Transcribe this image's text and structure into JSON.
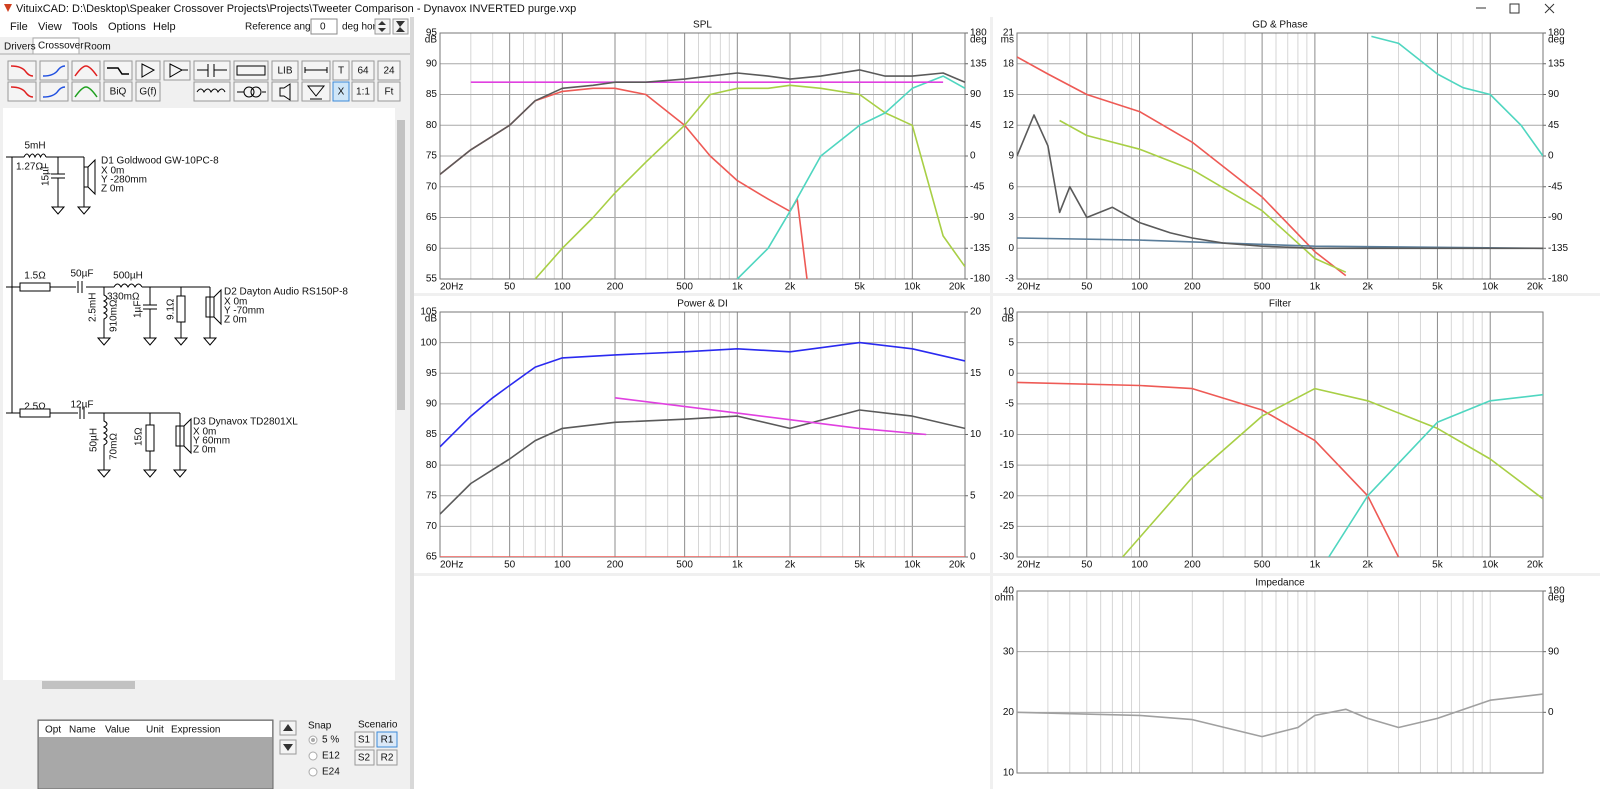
{
  "window": {
    "title": "VituixCAD: D:\\Desktop\\Speaker Crossover Projects\\Projects\\Tweeter Comparison - Dynavox INVERTED purge.vxp"
  },
  "menu": [
    "File",
    "View",
    "Tools",
    "Options",
    "Help"
  ],
  "reference": {
    "label": "Reference angle",
    "value": "0",
    "unit": "deg hor"
  },
  "tabs": [
    "Drivers",
    "Crossover",
    "Room"
  ],
  "toolbar_buttons": [
    "LIB",
    "T",
    "64",
    "24",
    "BiQ",
    "G(f)",
    "X",
    "1:1",
    "Ft"
  ],
  "schematic": [
    {
      "parts": [
        "5mH",
        "1.27Ω",
        "15µF"
      ],
      "driver": "D1 Goldwood GW-10PC-8",
      "position": [
        "X 0m",
        "Y -280mm",
        "Z 0m"
      ]
    },
    {
      "parts": [
        "1.5Ω",
        "50µF",
        "500µH",
        "2.5mH",
        "330mΩ",
        "910mΩ",
        "1µF",
        "9.1Ω"
      ],
      "driver": "D2 Dayton Audio RS150P-8",
      "position": [
        "X 0m",
        "Y -70mm",
        "Z 0m"
      ]
    },
    {
      "parts": [
        "2.5Ω",
        "12µF",
        "50µH",
        "70mΩ",
        "15Ω"
      ],
      "driver": "D3 Dynavox TD2801XL",
      "position": [
        "X 0m",
        "Y 60mm",
        "Z 0m"
      ]
    }
  ],
  "parameters": {
    "headers": [
      "Opt",
      "Name",
      "Value",
      "Unit",
      "Expression"
    ],
    "snap": {
      "title": "Snap",
      "options": [
        "5 %",
        "E12",
        "E24"
      ]
    },
    "scenario": {
      "title": "Scenario",
      "buttons": [
        "S1",
        "R1",
        "S2",
        "R2"
      ]
    }
  },
  "chart_data": [
    {
      "type": "line",
      "title": "SPL",
      "y_unit": "dB",
      "y2_unit": "deg",
      "log_x": true,
      "grid": true,
      "xlim": [
        20,
        20000
      ],
      "xticks": [
        {
          "value": 20,
          "label": "20Hz"
        },
        50,
        100,
        200,
        500,
        {
          "value": 1000,
          "label": "1k"
        },
        {
          "value": 2000,
          "label": "2k"
        },
        {
          "value": 5000,
          "label": "5k"
        },
        {
          "value": 10000,
          "label": "10k"
        },
        {
          "value": 20000,
          "label": "20k"
        }
      ],
      "xgrid": [
        30,
        40,
        60,
        70,
        80,
        90,
        300,
        400,
        600,
        700,
        800,
        900,
        3000,
        4000,
        6000,
        7000,
        8000,
        9000
      ],
      "ylim": [
        55,
        95
      ],
      "yticks": [
        55,
        60,
        65,
        70,
        75,
        80,
        85,
        90,
        95
      ],
      "y2lim": [
        -180,
        180
      ],
      "y2ticks": [
        -180,
        -135,
        -90,
        -45,
        0,
        45,
        90,
        135,
        180
      ],
      "series": [
        {
          "color": "#ee5a55",
          "x": [
            20,
            30,
            50,
            70,
            100,
            150,
            200,
            300,
            500,
            700,
            1000,
            1500,
            2000,
            2200,
            2500
          ],
          "values": [
            72,
            76,
            80,
            84,
            85.5,
            86,
            86,
            85,
            80,
            75,
            71,
            68,
            66,
            68,
            55
          ]
        },
        {
          "color": "#a8cf45",
          "x": [
            70,
            100,
            150,
            200,
            300,
            500,
            700,
            1000,
            1500,
            2000,
            3000,
            5000,
            7000,
            10000,
            15000,
            20000
          ],
          "values": [
            55,
            60,
            65,
            69,
            74,
            80,
            85,
            86,
            86,
            86.5,
            86,
            85,
            82,
            80,
            62,
            57
          ]
        },
        {
          "color": "#4fd6c0",
          "x": [
            1000,
            1500,
            2000,
            3000,
            5000,
            7000,
            10000,
            15000,
            20000
          ],
          "values": [
            55,
            60,
            66,
            75,
            80,
            82,
            86,
            88,
            86
          ]
        },
        {
          "color": "#e040e0",
          "x": [
            30,
            15000
          ],
          "values": [
            87,
            87
          ]
        },
        {
          "color": "#5a5a5a",
          "x": [
            20,
            30,
            50,
            70,
            100,
            150,
            200,
            300,
            500,
            700,
            1000,
            1500,
            2000,
            3000,
            5000,
            7000,
            10000,
            15000,
            20000
          ],
          "values": [
            72,
            76,
            80,
            84,
            86,
            86.5,
            87,
            87,
            87.5,
            88,
            88.5,
            88,
            87.5,
            88,
            89,
            88,
            88,
            88.5,
            87
          ]
        }
      ]
    },
    {
      "type": "line",
      "title": "GD & Phase",
      "y_unit": "ms",
      "y2_unit": "deg",
      "log_x": true,
      "grid": true,
      "xlim": [
        20,
        20000
      ],
      "xticks": [
        {
          "value": 20,
          "label": "20Hz"
        },
        50,
        100,
        200,
        500,
        {
          "value": 1000,
          "label": "1k"
        },
        {
          "value": 2000,
          "label": "2k"
        },
        {
          "value": 5000,
          "label": "5k"
        },
        {
          "value": 10000,
          "label": "10k"
        },
        {
          "value": 20000,
          "label": "20k"
        }
      ],
      "xgrid": [
        30,
        40,
        60,
        70,
        80,
        90,
        300,
        400,
        600,
        700,
        800,
        900,
        3000,
        4000,
        6000,
        7000,
        8000,
        9000
      ],
      "ylim": [
        -3,
        21
      ],
      "yticks": [
        -3,
        0,
        3,
        6,
        9,
        12,
        15,
        18,
        21
      ],
      "y2lim": [
        -180,
        180
      ],
      "y2ticks": [
        -180,
        -135,
        -90,
        -45,
        0,
        45,
        90,
        135,
        180
      ],
      "series": [
        {
          "color": "#ee5a55",
          "axis": "y2",
          "x": [
            20,
            30,
            50,
            100,
            200,
            500,
            1000,
            1500
          ],
          "values": [
            145,
            120,
            90,
            65,
            20,
            -60,
            -140,
            -175
          ]
        },
        {
          "color": "#a8cf45",
          "axis": "y2",
          "x": [
            35,
            50,
            100,
            200,
            500,
            1000,
            1500
          ],
          "values": [
            52,
            30,
            10,
            -20,
            -80,
            -150,
            -170
          ]
        },
        {
          "color": "#4fd6c0",
          "axis": "y2",
          "x": [
            2100,
            3000,
            5000,
            7000,
            10000,
            15000,
            20000
          ],
          "values": [
            175,
            165,
            120,
            100,
            90,
            45,
            0
          ]
        },
        {
          "color": "#5a7d9a",
          "x": [
            20,
            100,
            1000,
            20000
          ],
          "values": [
            1,
            0.8,
            0.2,
            0
          ]
        },
        {
          "color": "#5a5a5a",
          "x": [
            20,
            25,
            30,
            35,
            40,
            50,
            70,
            100,
            150,
            200,
            300,
            500,
            1000,
            2000,
            5000,
            20000
          ],
          "values": [
            9,
            13,
            10,
            3.5,
            6,
            3,
            4,
            2.5,
            1.5,
            1,
            0.5,
            0.2,
            0,
            0,
            0,
            0
          ]
        }
      ]
    },
    {
      "type": "line",
      "title": "Power & DI",
      "y_unit": "dB",
      "log_x": true,
      "grid": true,
      "xlim": [
        20,
        20000
      ],
      "xticks": [
        {
          "value": 20,
          "label": "20Hz"
        },
        50,
        100,
        200,
        500,
        {
          "value": 1000,
          "label": "1k"
        },
        {
          "value": 2000,
          "label": "2k"
        },
        {
          "value": 5000,
          "label": "5k"
        },
        {
          "value": 10000,
          "label": "10k"
        },
        {
          "value": 20000,
          "label": "20k"
        }
      ],
      "xgrid": [
        30,
        40,
        60,
        70,
        80,
        90,
        300,
        400,
        600,
        700,
        800,
        900,
        3000,
        4000,
        6000,
        7000,
        8000,
        9000
      ],
      "ylim": [
        65,
        105
      ],
      "yticks": [
        65,
        70,
        75,
        80,
        85,
        90,
        95,
        100,
        105
      ],
      "y2lim": [
        0,
        20
      ],
      "y2ticks": [
        0,
        5,
        10,
        15,
        20
      ],
      "series": [
        {
          "color": "#2a2af0",
          "x": [
            20,
            30,
            40,
            50,
            70,
            100,
            200,
            500,
            1000,
            2000,
            5000,
            10000,
            20000
          ],
          "values": [
            83,
            88,
            91,
            93,
            96,
            97.5,
            98,
            98.5,
            99,
            98.5,
            100,
            99,
            97
          ]
        },
        {
          "color": "#5a5a5a",
          "x": [
            20,
            30,
            50,
            70,
            100,
            200,
            500,
            1000,
            2000,
            5000,
            10000,
            20000
          ],
          "values": [
            72,
            77,
            81,
            84,
            86,
            87,
            87.5,
            88,
            86,
            89,
            88,
            86
          ]
        },
        {
          "color": "#e040e0",
          "x": [
            200,
            1000,
            5000,
            12000
          ],
          "values": [
            91,
            88.5,
            86,
            85
          ]
        },
        {
          "color": "#ee5a55",
          "axis": "y2",
          "x": [
            20,
            20000
          ],
          "values": [
            0,
            0
          ]
        }
      ]
    },
    {
      "type": "line",
      "title": "Filter",
      "y_unit": "dB",
      "log_x": true,
      "grid": true,
      "xlim": [
        20,
        20000
      ],
      "xticks": [
        {
          "value": 20,
          "label": "20Hz"
        },
        50,
        100,
        200,
        500,
        {
          "value": 1000,
          "label": "1k"
        },
        {
          "value": 2000,
          "label": "2k"
        },
        {
          "value": 5000,
          "label": "5k"
        },
        {
          "value": 10000,
          "label": "10k"
        },
        {
          "value": 20000,
          "label": "20k"
        }
      ],
      "xgrid": [
        30,
        40,
        60,
        70,
        80,
        90,
        300,
        400,
        600,
        700,
        800,
        900,
        3000,
        4000,
        6000,
        7000,
        8000,
        9000
      ],
      "ylim": [
        -30,
        10
      ],
      "yticks": [
        -30,
        -25,
        -20,
        -15,
        -10,
        -5,
        0,
        5,
        10
      ],
      "series": [
        {
          "color": "#ee5a55",
          "x": [
            20,
            100,
            200,
            500,
            1000,
            2000,
            3000
          ],
          "values": [
            -1.5,
            -2,
            -2.5,
            -6,
            -11,
            -20,
            -30
          ]
        },
        {
          "color": "#a8cf45",
          "x": [
            80,
            200,
            500,
            1000,
            2000,
            5000,
            10000,
            20000
          ],
          "values": [
            -30,
            -17,
            -7,
            -2.5,
            -4.5,
            -9,
            -14,
            -20.5
          ]
        },
        {
          "color": "#4fd6c0",
          "x": [
            1200,
            2000,
            5000,
            10000,
            20000
          ],
          "values": [
            -30,
            -20,
            -8,
            -4.5,
            -3.5
          ]
        }
      ]
    },
    {
      "type": "line",
      "title": "Impedance",
      "y_unit": "ohm",
      "y2_unit": "deg",
      "log_x": true,
      "grid": true,
      "xlim": [
        20,
        20000
      ],
      "xgrid": [
        20,
        30,
        40,
        50,
        60,
        70,
        80,
        90,
        100,
        200,
        300,
        400,
        500,
        600,
        700,
        800,
        900,
        1000,
        2000,
        3000,
        4000,
        5000,
        6000,
        7000,
        8000,
        9000,
        10000,
        20000
      ],
      "ylim": [
        10,
        40
      ],
      "yticks": [
        10,
        20,
        30,
        40
      ],
      "y2lim": [
        -90,
        180
      ],
      "y2ticks": [
        0,
        90,
        180
      ],
      "series": [
        {
          "color": "#a0a0a0",
          "x": [
            20,
            100,
            200,
            500,
            800,
            1000,
            1500,
            2000,
            3000,
            5000,
            10000,
            20000
          ],
          "values": [
            20,
            19.5,
            18.8,
            16,
            17.5,
            19.5,
            20.5,
            19,
            17.5,
            19,
            22,
            23
          ]
        }
      ]
    }
  ]
}
